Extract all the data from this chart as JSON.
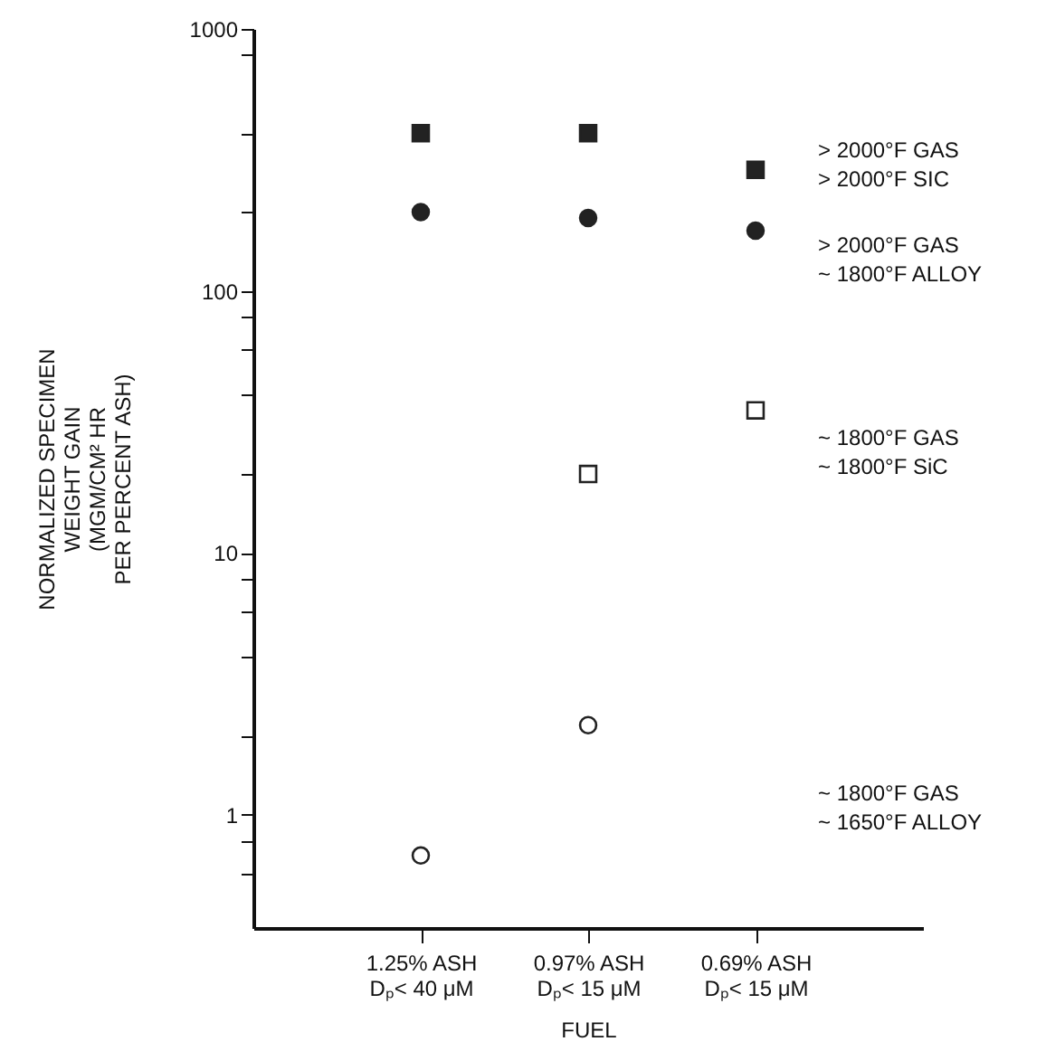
{
  "chart_data": {
    "type": "scatter",
    "xlabel": "FUEL",
    "ylabel": "NORMALIZED SPECIMEN\nWEIGHT GAIN\n(MGM/CM² HR\nPER PERCENT ASH)",
    "categories": [
      "1.25% ASH\nDₚ< 40 μM",
      "0.97% ASH\nDₚ< 15 μM",
      "0.69% ASH\nDₚ< 15 μM"
    ],
    "series": [
      {
        "color": "#222222",
        "marker": "square",
        "values": [
          400,
          400,
          290
        ]
      },
      {
        "color": "#222222",
        "marker": "circle",
        "values": [
          200,
          190,
          170
        ]
      },
      {
        "color": "#ffffff",
        "marker": "square",
        "values": [
          null,
          20,
          35
        ]
      },
      {
        "color": "#ffffff",
        "marker": "circle",
        "values": [
          0.7,
          2.2,
          null
        ]
      }
    ],
    "log": true,
    "ylim": [
      0.37,
      1000
    ],
    "yticks": [
      {
        "value": 0.6,
        "label": null
      },
      {
        "value": 0.8,
        "label": null
      },
      1,
      {
        "value": 2,
        "label": null
      },
      {
        "value": 4,
        "label": null
      },
      {
        "value": 6,
        "label": null
      },
      {
        "value": 8,
        "label": null
      },
      10,
      {
        "value": 20,
        "label": null
      },
      {
        "value": 40,
        "label": null
      },
      {
        "value": 60,
        "label": null
      },
      {
        "value": 80,
        "label": null
      },
      100,
      {
        "value": 200,
        "label": null
      },
      {
        "value": 400,
        "label": null
      },
      {
        "value": 800,
        "label": null
      },
      1000
    ],
    "grid": false,
    "annotations": [
      "> 2000°F GAS\n> 2000°F SIC",
      "> 2000°F GAS\n~ 1800°F ALLOY",
      "~ 1800°F GAS\n~ 1800°F SiC",
      "~ 1800°F GAS\n~ 1650°F ALLOY"
    ]
  }
}
